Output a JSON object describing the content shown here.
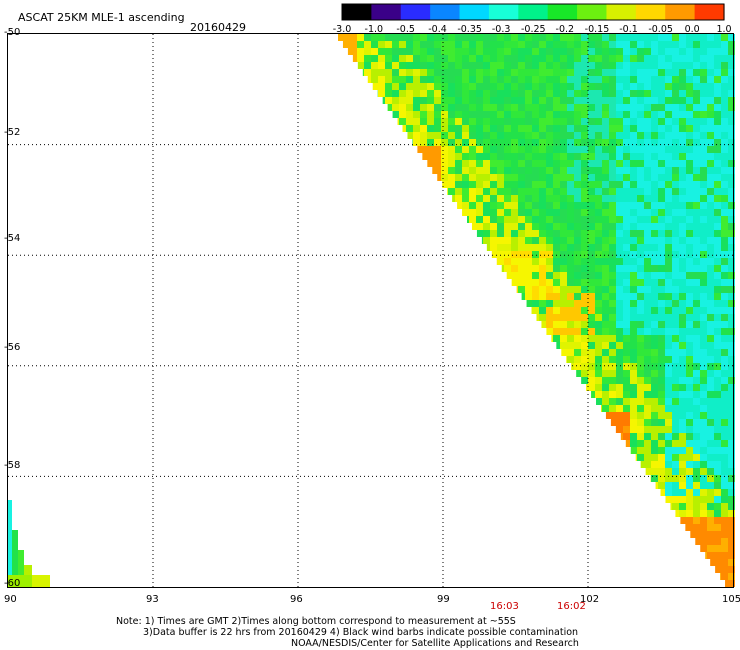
{
  "header": {
    "title": "ASCAT 25KM MLE-1 ascending",
    "date": "20160429"
  },
  "colorbar": {
    "labels": [
      "-3.0",
      "-1.0",
      "-0.5",
      "-0.4",
      "-0.35",
      "-0.3",
      "-0.25",
      "-0.2",
      "-0.15",
      "-0.1",
      "-0.05",
      "0.0",
      "1.0"
    ],
    "colors": [
      "#000000",
      "#3a0088",
      "#2a2cff",
      "#0a86ff",
      "#00d8ff",
      "#18ffd8",
      "#00f28a",
      "#18e828",
      "#6cf010",
      "#d8f000",
      "#ffd800",
      "#ff9a00",
      "#ff3a00"
    ]
  },
  "axes": {
    "y_labels": [
      "-50",
      "-52",
      "-54",
      "-56",
      "-58",
      "-60"
    ],
    "x_labels": [
      "90",
      "93",
      "96",
      "99",
      "102",
      "105"
    ],
    "lon_range": [
      90,
      105
    ],
    "lat_range": [
      -60,
      -50
    ]
  },
  "times": [
    "16:03",
    "16:02"
  ],
  "notes": {
    "line1": "Note: 1) Times are GMT 2)Times along bottom correspond to measurement at ~55S",
    "line2": "3)Data buffer is 22 hrs from 20160429 4) Black wind barbs indicate possible contamination",
    "line3": "NOAA/NESDIS/Center for Satellite Applications and Research"
  },
  "colors": {
    "swath_base": "#22e24a",
    "cyan": "#18f2e2",
    "orange": "#ff8a00",
    "yellow": "#f6f600"
  }
}
